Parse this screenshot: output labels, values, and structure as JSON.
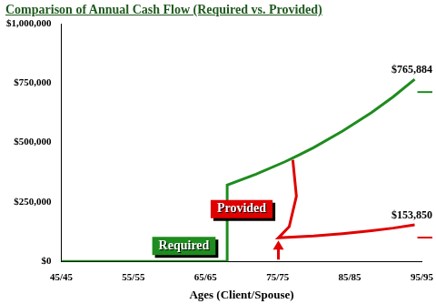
{
  "chart_data": {
    "type": "line",
    "title": "Comparison of Annual Cash Flow (Required vs. Provided)",
    "x_label": "Ages (Client/Spouse)",
    "xlim": [
      45,
      95
    ],
    "xticks": [
      {
        "value": 45,
        "label": "45/45"
      },
      {
        "value": 55,
        "label": "55/55"
      },
      {
        "value": 65,
        "label": "65/65"
      },
      {
        "value": 75,
        "label": "75/75"
      },
      {
        "value": 85,
        "label": "85/85"
      },
      {
        "value": 95,
        "label": "95/95"
      }
    ],
    "ylim": [
      0,
      1000000
    ],
    "yticks": [
      {
        "value": 0,
        "label": "$0"
      },
      {
        "value": 250000,
        "label": "$250,000"
      },
      {
        "value": 500000,
        "label": "$500,000"
      },
      {
        "value": 750000,
        "label": "$750,000"
      },
      {
        "value": 1000000,
        "label": "$1,000,000"
      }
    ],
    "grid": false,
    "series": [
      {
        "name": "Required",
        "color": "#1e8c1e",
        "x": [
          45,
          68,
          68,
          72,
          76,
          78,
          80,
          84,
          88,
          91,
          94
        ],
        "values": [
          0,
          0,
          321000,
          367000,
          419000,
          448000,
          479000,
          548000,
          626000,
          692000,
          765884
        ],
        "value_labels": [
          null,
          null,
          null,
          null,
          null,
          null,
          null,
          null,
          null,
          null,
          "$765,884"
        ]
      },
      {
        "name": "Provided",
        "color": "#e00000",
        "x": [
          77.1,
          77.6,
          76.6,
          75.1,
          80,
          84,
          88,
          91,
          94
        ],
        "values": [
          427000,
          274000,
          146000,
          99000,
          107000,
          117000,
          129000,
          140000,
          153850
        ],
        "value_labels": [
          null,
          null,
          null,
          null,
          null,
          null,
          null,
          null,
          "$153,850"
        ]
      }
    ]
  }
}
